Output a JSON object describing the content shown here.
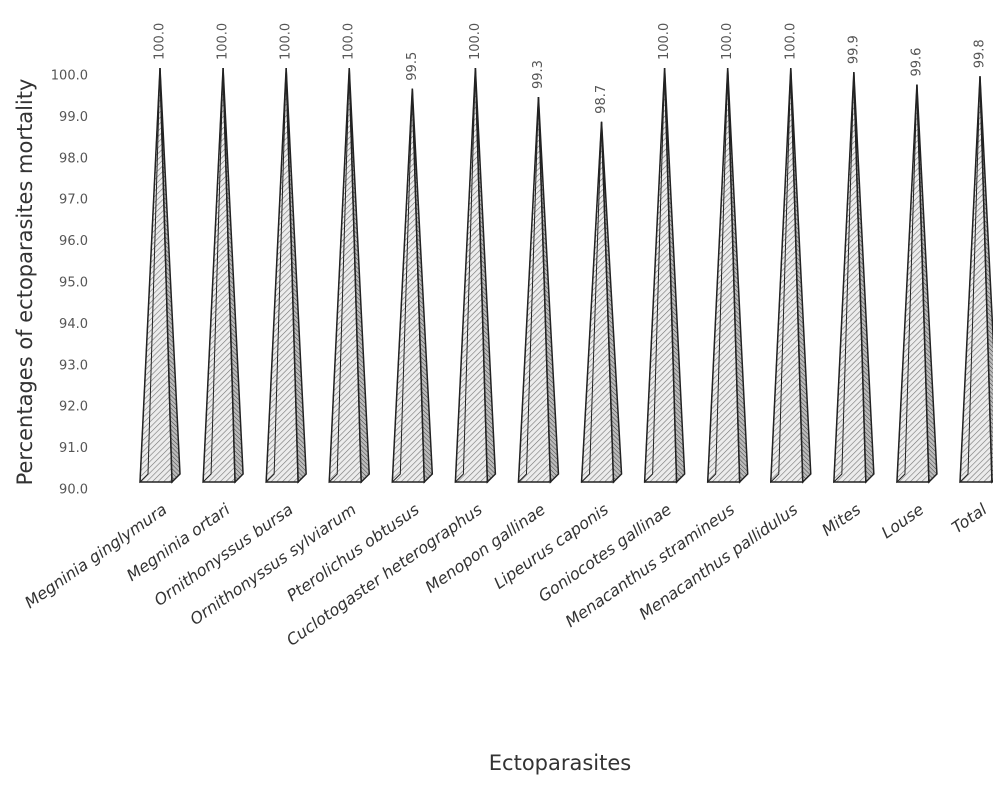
{
  "chart_data": {
    "type": "pyramid",
    "y_label": "Percentages of ectoparasites mortality",
    "x_label": "Ectoparasites",
    "categories": [
      "Megninia ginglymura",
      "Megninia ortari",
      "Ornithonyssus bursa",
      "Ornithonyssus sylviarum",
      "Pterolichus obtusus",
      "Cuclotogaster heterographus",
      "Menopon gallinae",
      "Lipeurus caponis",
      "Goniocotes gallinae",
      "Menacanthus stramineus",
      "Menacanthus pallidulus",
      "Mites",
      "Louse",
      "Total"
    ],
    "values": [
      100,
      100,
      100,
      100,
      99.5,
      100,
      99.3,
      98.7,
      100,
      100,
      100,
      99.9,
      99.6,
      99.8
    ],
    "value_labels": [
      "100.0",
      "100.0",
      "100.0",
      "100.0",
      "99.5",
      "100.0",
      "99.3",
      "98.7",
      "100.0",
      "100.0",
      "100.0",
      "99.9",
      "99.6",
      "99.8"
    ],
    "color": "#d9d9d9",
    "ylim": [
      90,
      100
    ],
    "yticks": [
      {
        "value": 90,
        "label": "90.0"
      },
      {
        "value": 91,
        "label": "91.0"
      },
      {
        "value": 92,
        "label": "92.0"
      },
      {
        "value": 93,
        "label": "93.0"
      },
      {
        "value": 94,
        "label": "94.0"
      },
      {
        "value": 95,
        "label": "95.0"
      },
      {
        "value": 96,
        "label": "96.0"
      },
      {
        "value": 97,
        "label": "97.0"
      },
      {
        "value": 98,
        "label": "98.0"
      },
      {
        "value": 99,
        "label": "99.0"
      },
      {
        "value": 100,
        "label": "100.0"
      }
    ],
    "grid": false
  }
}
